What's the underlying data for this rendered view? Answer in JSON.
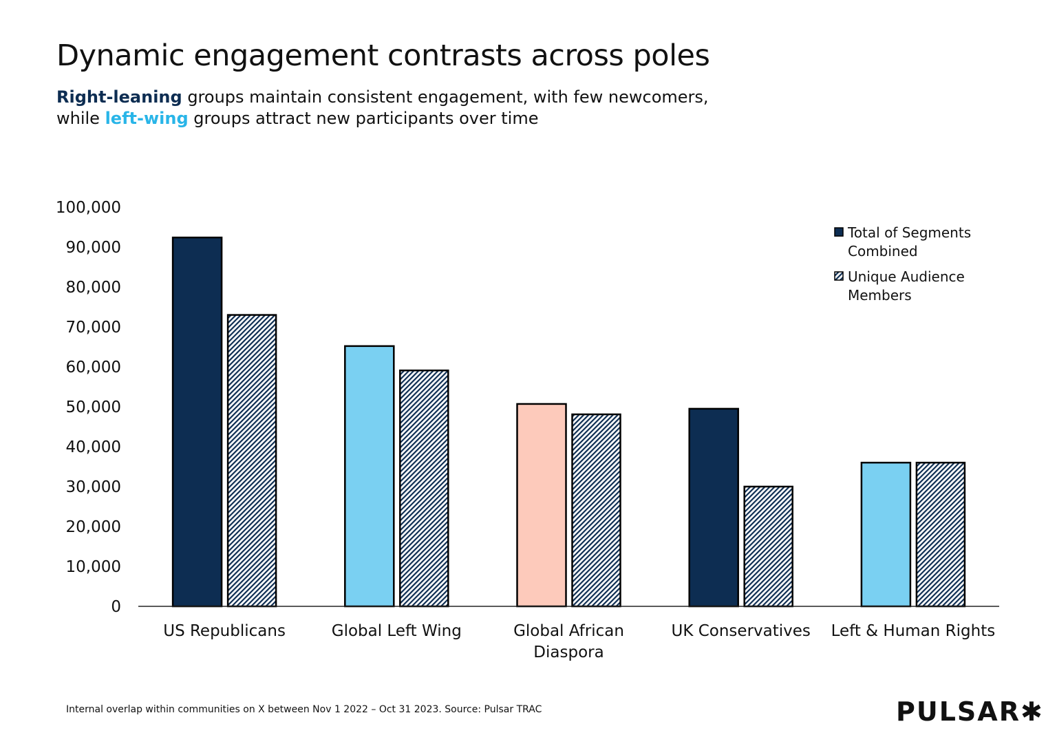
{
  "title": "Dynamic engagement contrasts across poles",
  "subtitle": {
    "line1_highlight": "Right-leaning",
    "line1_rest": " groups maintain consistent engagement, with few newcomers,",
    "line2_prefix": "while ",
    "line2_highlight": "left-wing",
    "line2_rest": " groups attract new participants over time"
  },
  "footer": "Internal overlap within communities on X between Nov 1 2022 – Oct 31 2023. Source: Pulsar TRAC",
  "logo": "PULSAR✱",
  "colors": {
    "right": "#0d2d52",
    "left": "#7ad0f2",
    "left_text": "#29b5e8",
    "diaspora": "#fdcabb",
    "hatch": "#0d2d52"
  },
  "chart_data": {
    "type": "bar",
    "categories": [
      "US Republicans",
      "Global Left Wing",
      "Global African Diaspora",
      "UK Conservatives",
      "Left & Human Rights"
    ],
    "category_lines": [
      [
        "US Republicans"
      ],
      [
        "Global Left Wing"
      ],
      [
        "Global African",
        "Diaspora"
      ],
      [
        "UK Conservatives"
      ],
      [
        "Left & Human Rights"
      ]
    ],
    "series": [
      {
        "name": "Total of Segments Combined",
        "values": [
          92400,
          65200,
          50700,
          49500,
          36000
        ],
        "colors": [
          "#0d2d52",
          "#7ad0f2",
          "#fdcabb",
          "#0d2d52",
          "#7ad0f2"
        ]
      },
      {
        "name": "Unique Audience Members",
        "values": [
          73000,
          59100,
          48100,
          30000,
          36000
        ],
        "pattern": "diagonal-hatch"
      }
    ],
    "legend_lines": [
      [
        "Total of Segments",
        "Combined"
      ],
      [
        "Unique Audience",
        "Members"
      ]
    ],
    "ylim": [
      0,
      100000
    ],
    "yticks": [
      0,
      10000,
      20000,
      30000,
      40000,
      50000,
      60000,
      70000,
      80000,
      90000,
      100000
    ],
    "ytick_labels": [
      "0",
      "10,000",
      "20,000",
      "30,000",
      "40,000",
      "50,000",
      "60,000",
      "70,000",
      "80,000",
      "90,000",
      "100,000"
    ],
    "grid": false,
    "legend": "top-right"
  }
}
